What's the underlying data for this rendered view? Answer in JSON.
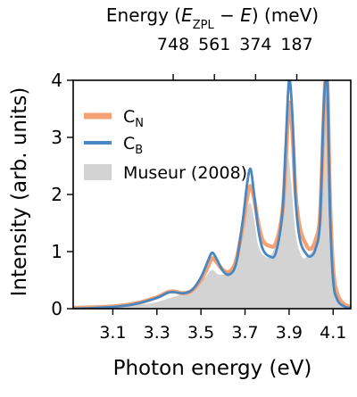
{
  "chart_data": {
    "type": "line",
    "xlabel": "Photon energy (eV)",
    "ylabel": "Intensity (arb. units)",
    "top_axis": {
      "label_parts": [
        "Energy (",
        "E",
        "ZPL",
        " − ",
        "E",
        ") (meV)"
      ],
      "tick_positions_eV": [
        3.374,
        3.561,
        3.748,
        3.935
      ],
      "tick_labels": [
        "748",
        "561",
        "374",
        "187"
      ]
    },
    "xlim": [
      2.92,
      4.18
    ],
    "ylim": [
      0,
      4
    ],
    "xticks": [
      3.1,
      3.3,
      3.5,
      3.7,
      3.9,
      4.1
    ],
    "xtick_labels": [
      "3.1",
      "3.3",
      "3.5",
      "3.7",
      "3.9",
      "4.1"
    ],
    "yticks": [
      0,
      1,
      2,
      3,
      4
    ],
    "ytick_labels": [
      "0",
      "1",
      "2",
      "3",
      "4"
    ],
    "legend": {
      "placement": "upper-left",
      "entries": [
        {
          "base": "C",
          "sub": "N",
          "color": "#f4a274",
          "kind": "line"
        },
        {
          "base": "C",
          "sub": "B",
          "color": "#4a86bf",
          "kind": "line"
        },
        {
          "text": "Museur (2008)",
          "color": "#d3d3d3",
          "kind": "area"
        }
      ]
    },
    "series": [
      {
        "name": "Museur (2008)",
        "color": "#d3d3d3",
        "kind": "area",
        "x": [
          2.92,
          3.0,
          3.1,
          3.2,
          3.28,
          3.33,
          3.37,
          3.42,
          3.48,
          3.52,
          3.55,
          3.58,
          3.62,
          3.66,
          3.69,
          3.71,
          3.725,
          3.74,
          3.76,
          3.79,
          3.82,
          3.86,
          3.88,
          3.895,
          3.91,
          3.93,
          3.96,
          3.99,
          4.01,
          4.03,
          4.05,
          4.06,
          4.07,
          4.08,
          4.09,
          4.11,
          4.14,
          4.18
        ],
        "y": [
          0.05,
          0.06,
          0.06,
          0.07,
          0.1,
          0.15,
          0.2,
          0.26,
          0.35,
          0.55,
          0.68,
          0.6,
          0.62,
          0.8,
          1.3,
          1.75,
          1.85,
          1.6,
          1.1,
          0.92,
          0.95,
          1.4,
          2.1,
          2.65,
          2.2,
          1.3,
          0.9,
          0.95,
          1.05,
          1.4,
          2.7,
          3.7,
          3.2,
          1.5,
          0.8,
          0.3,
          0.1,
          0.05
        ]
      },
      {
        "name": "C_N",
        "color": "#f4a274",
        "kind": "line",
        "x": [
          2.92,
          3.0,
          3.1,
          3.2,
          3.3,
          3.35,
          3.38,
          3.42,
          3.46,
          3.5,
          3.53,
          3.55,
          3.57,
          3.6,
          3.63,
          3.66,
          3.69,
          3.71,
          3.725,
          3.74,
          3.76,
          3.78,
          3.81,
          3.84,
          3.87,
          3.885,
          3.9,
          3.915,
          3.93,
          3.95,
          3.98,
          4.0,
          4.02,
          4.04,
          4.055,
          4.065,
          4.075,
          4.085,
          4.1,
          4.12,
          4.15,
          4.18
        ],
        "y": [
          0.01,
          0.02,
          0.04,
          0.09,
          0.2,
          0.29,
          0.3,
          0.27,
          0.32,
          0.5,
          0.72,
          0.88,
          0.82,
          0.68,
          0.65,
          0.85,
          1.45,
          1.95,
          2.15,
          1.95,
          1.5,
          1.2,
          1.1,
          1.15,
          1.7,
          2.6,
          3.6,
          3.1,
          2.0,
          1.4,
          1.1,
          1.05,
          1.2,
          1.6,
          3.1,
          4.0,
          3.8,
          2.0,
          0.7,
          0.25,
          0.08,
          0.03
        ]
      },
      {
        "name": "C_B",
        "color": "#4a86bf",
        "kind": "line",
        "x": [
          2.92,
          3.0,
          3.1,
          3.2,
          3.3,
          3.35,
          3.38,
          3.42,
          3.46,
          3.5,
          3.53,
          3.55,
          3.57,
          3.6,
          3.63,
          3.66,
          3.69,
          3.71,
          3.725,
          3.74,
          3.76,
          3.78,
          3.81,
          3.84,
          3.87,
          3.885,
          3.9,
          3.915,
          3.93,
          3.95,
          3.98,
          4.0,
          4.02,
          4.04,
          4.055,
          4.065,
          4.075,
          4.085,
          4.1,
          4.12,
          4.15,
          4.18
        ],
        "y": [
          0.0,
          0.01,
          0.03,
          0.08,
          0.19,
          0.28,
          0.29,
          0.27,
          0.33,
          0.55,
          0.82,
          0.98,
          0.88,
          0.66,
          0.6,
          0.8,
          1.55,
          2.2,
          2.45,
          2.05,
          1.4,
          1.05,
          0.92,
          0.98,
          1.7,
          2.9,
          4.0,
          3.4,
          1.9,
          1.2,
          0.95,
          0.92,
          1.05,
          1.5,
          3.3,
          4.0,
          3.9,
          1.8,
          0.5,
          0.15,
          0.04,
          0.01
        ]
      }
    ]
  }
}
